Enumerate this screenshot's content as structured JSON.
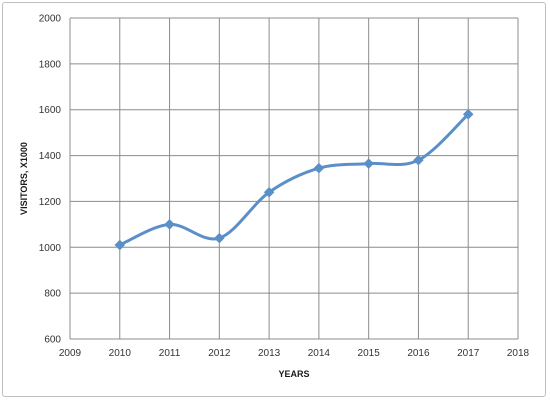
{
  "chart_data": {
    "type": "line",
    "title": "",
    "xlabel": "YEARS",
    "ylabel": "VISITORS,  X1000",
    "xlim": [
      2009,
      2018
    ],
    "ylim": [
      600,
      2000
    ],
    "x_ticks": [
      2009,
      2010,
      2011,
      2012,
      2013,
      2014,
      2015,
      2016,
      2017,
      2018
    ],
    "y_ticks": [
      600,
      800,
      1000,
      1200,
      1400,
      1600,
      1800,
      2000
    ],
    "grid": true,
    "legend": "none",
    "smooth": true,
    "series": [
      {
        "color": "#5b8fc7",
        "marker": "diamond",
        "x": [
          2010,
          2011,
          2012,
          2013,
          2014,
          2015,
          2016,
          2017
        ],
        "y": [
          1010,
          1100,
          1040,
          1240,
          1345,
          1365,
          1380,
          1580
        ]
      }
    ]
  },
  "colors": {
    "line": "#5b8fc7",
    "grid": "#8c8c8c",
    "frame": "#bfbfbf"
  }
}
